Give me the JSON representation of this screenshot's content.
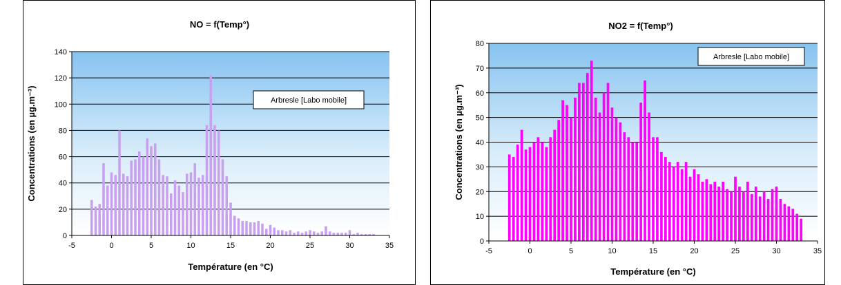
{
  "chart_data": [
    {
      "type": "bar",
      "title": "NO = f(Temp°)",
      "xlabel": "Température (en °C)",
      "ylabel": "Concentrations (en µg.m⁻³)",
      "xlim": [
        -5,
        35
      ],
      "ylim": [
        0,
        140
      ],
      "xticks": [
        -5,
        0,
        5,
        10,
        15,
        20,
        25,
        30,
        35
      ],
      "yticks": [
        0,
        20,
        40,
        60,
        80,
        100,
        120,
        140
      ],
      "grid": true,
      "legend_position": "top-right",
      "series": [
        {
          "name": "Arbresle [Labo mobile]",
          "color": "#c8a0f0",
          "x": [
            -2.5,
            -2,
            -1.5,
            -1,
            -0.5,
            0,
            0.5,
            1,
            1.5,
            2,
            2.5,
            3,
            3.5,
            4,
            4.5,
            5,
            5.5,
            6,
            6.5,
            7,
            7.5,
            8,
            8.5,
            9,
            9.5,
            10,
            10.5,
            11,
            11.5,
            12,
            12.5,
            13,
            13.5,
            14,
            14.5,
            15,
            15.5,
            16,
            16.5,
            17,
            17.5,
            18,
            18.5,
            19,
            19.5,
            20,
            20.5,
            21,
            21.5,
            22,
            22.5,
            23,
            23.5,
            24,
            24.5,
            25,
            25.5,
            26,
            26.5,
            27,
            27.5,
            28,
            28.5,
            29,
            29.5,
            30,
            30.5,
            31,
            31.5,
            32,
            32.5,
            33
          ],
          "values": [
            27,
            22,
            24,
            55,
            38,
            48,
            46,
            80,
            47,
            45,
            57,
            58,
            64,
            60,
            74,
            68,
            70,
            58,
            46,
            45,
            32,
            42,
            38,
            33,
            47,
            48,
            55,
            44,
            46,
            84,
            122,
            84,
            80,
            58,
            45,
            25,
            15,
            13,
            11,
            11,
            10,
            10,
            11,
            9,
            5,
            8,
            6,
            4,
            4,
            3,
            4,
            2,
            3,
            2,
            3,
            4,
            3,
            2,
            3,
            7,
            3,
            2,
            2,
            2,
            2,
            4,
            1,
            2,
            1,
            1,
            1,
            1
          ]
        }
      ]
    },
    {
      "type": "bar",
      "title": "NO2 = f(Temp°)",
      "xlabel": "Température (en °C)",
      "ylabel": "Concentrations (en µg.m⁻³)",
      "xlim": [
        -5,
        35
      ],
      "ylim": [
        0,
        80
      ],
      "xticks": [
        -5,
        0,
        5,
        10,
        15,
        20,
        25,
        30,
        35
      ],
      "yticks": [
        0,
        10,
        20,
        30,
        40,
        50,
        60,
        70,
        80
      ],
      "grid": true,
      "legend_position": "top-right",
      "series": [
        {
          "name": "Arbresle [Labo mobile]",
          "color": "#ff00ff",
          "x": [
            -2.5,
            -2,
            -1.5,
            -1,
            -0.5,
            0,
            0.5,
            1,
            1.5,
            2,
            2.5,
            3,
            3.5,
            4,
            4.5,
            5,
            5.5,
            6,
            6.5,
            7,
            7.5,
            8,
            8.5,
            9,
            9.5,
            10,
            10.5,
            11,
            11.5,
            12,
            12.5,
            13,
            13.5,
            14,
            14.5,
            15,
            15.5,
            16,
            16.5,
            17,
            17.5,
            18,
            18.5,
            19,
            19.5,
            20,
            20.5,
            21,
            21.5,
            22,
            22.5,
            23,
            23.5,
            24,
            24.5,
            25,
            25.5,
            26,
            26.5,
            27,
            27.5,
            28,
            28.5,
            29,
            29.5,
            30,
            30.5,
            31,
            31.5,
            32,
            32.5,
            33
          ],
          "values": [
            35,
            34,
            39,
            45,
            37,
            38,
            40,
            42,
            40,
            38,
            42,
            45,
            49,
            57,
            55,
            50,
            58,
            64,
            64,
            68,
            73,
            58,
            52,
            60,
            64,
            54,
            50,
            48,
            44,
            42,
            40,
            40,
            56,
            65,
            52,
            42,
            42,
            36,
            34,
            32,
            30,
            32,
            29,
            32,
            26,
            29,
            27,
            24,
            25,
            23,
            24,
            22,
            24,
            21,
            20,
            26,
            22,
            20,
            24,
            19,
            22,
            18,
            20,
            17,
            21,
            22,
            17,
            15,
            14,
            13,
            11,
            9
          ]
        }
      ]
    }
  ]
}
